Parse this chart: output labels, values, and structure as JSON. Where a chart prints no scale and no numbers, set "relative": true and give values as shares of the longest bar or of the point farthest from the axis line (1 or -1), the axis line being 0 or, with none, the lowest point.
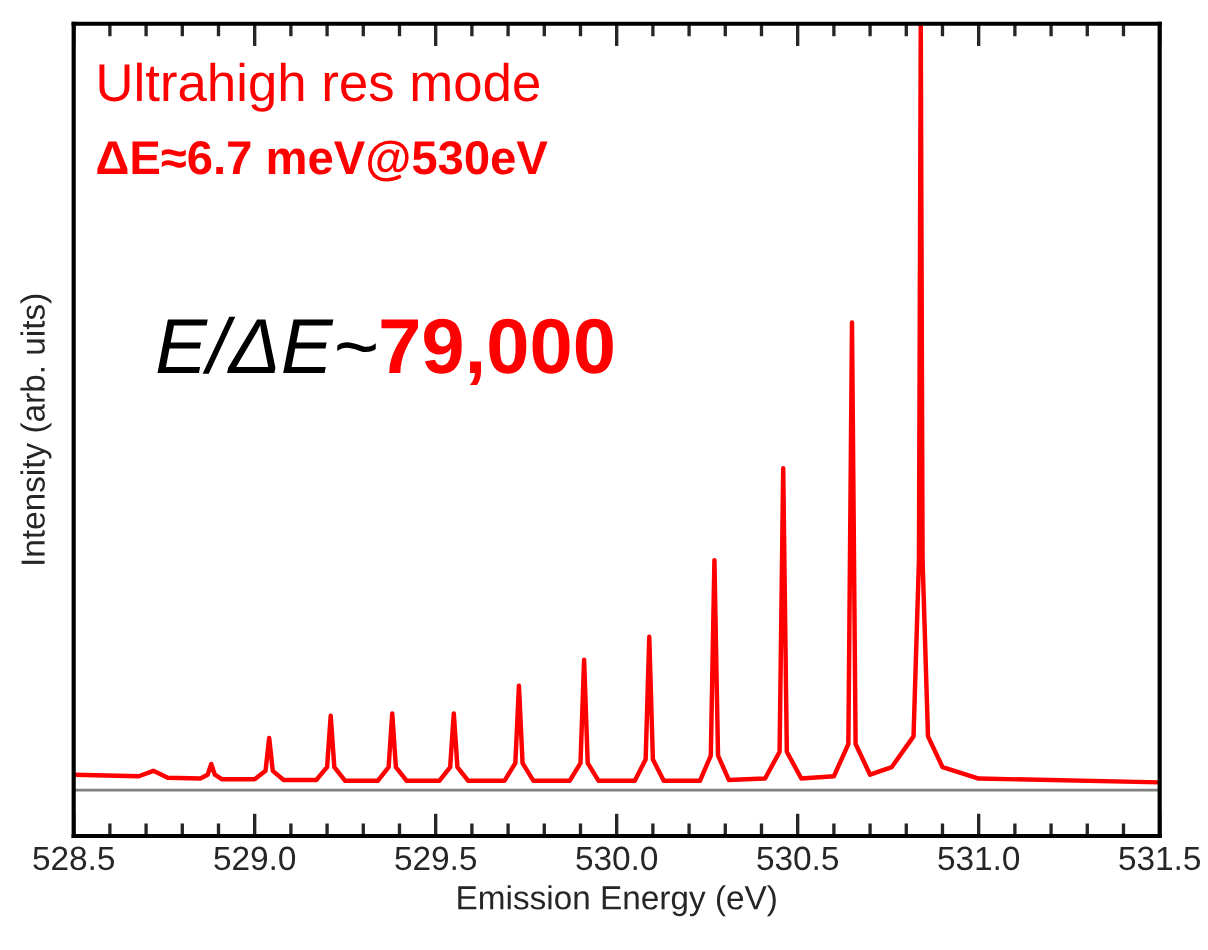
{
  "chart_data": {
    "type": "line",
    "relative": true,
    "xlabel": "Emission Energy (eV)",
    "ylabel": "Intensity (arb. uits)",
    "xlim": [
      528.5,
      531.5
    ],
    "xticks": [
      528.5,
      {
        "value": 528.6,
        "label": null
      },
      {
        "value": 528.7,
        "label": null
      },
      {
        "value": 528.8,
        "label": null
      },
      {
        "value": 528.9,
        "label": null
      },
      {
        "value": 529.0,
        "label": "529.0"
      },
      {
        "value": 529.1,
        "label": null
      },
      {
        "value": 529.2,
        "label": null
      },
      {
        "value": 529.3,
        "label": null
      },
      {
        "value": 529.4,
        "label": null
      },
      529.5,
      {
        "value": 529.6,
        "label": null
      },
      {
        "value": 529.7,
        "label": null
      },
      {
        "value": 529.8,
        "label": null
      },
      {
        "value": 529.9,
        "label": null
      },
      {
        "value": 530.0,
        "label": "530.0"
      },
      {
        "value": 530.1,
        "label": null
      },
      {
        "value": 530.2,
        "label": null
      },
      {
        "value": 530.3,
        "label": null
      },
      {
        "value": 530.4,
        "label": null
      },
      530.5,
      {
        "value": 530.6,
        "label": null
      },
      {
        "value": 530.7,
        "label": null
      },
      {
        "value": 530.8,
        "label": null
      },
      {
        "value": 530.9,
        "label": null
      },
      {
        "value": 531.0,
        "label": "531.0"
      },
      {
        "value": 531.1,
        "label": null
      },
      {
        "value": 531.2,
        "label": null
      },
      {
        "value": 531.3,
        "label": null
      },
      {
        "value": 531.4,
        "label": null
      },
      531.5
    ],
    "ref_lines": [
      {
        "axis": "y",
        "value": 0,
        "label": null,
        "color": "#808080"
      }
    ],
    "series": [
      {
        "color": "#ff0000",
        "x": [
          528.5,
          528.68,
          528.72,
          528.76,
          528.85,
          528.87,
          528.88,
          528.89,
          528.91,
          529.0,
          529.03,
          529.04,
          529.05,
          529.08,
          529.17,
          529.2,
          529.21,
          529.22,
          529.25,
          529.34,
          529.37,
          529.38,
          529.39,
          529.42,
          529.51,
          529.54,
          529.55,
          529.56,
          529.59,
          529.69,
          529.72,
          529.73,
          529.74,
          529.77,
          529.87,
          529.9,
          529.91,
          529.92,
          529.95,
          530.05,
          530.08,
          530.09,
          530.1,
          530.13,
          530.23,
          530.26,
          530.27,
          530.28,
          530.31,
          530.41,
          530.45,
          530.46,
          530.47,
          530.51,
          530.6,
          530.64,
          530.65,
          530.66,
          530.7,
          530.76,
          530.82,
          530.835,
          530.84,
          530.845,
          530.86,
          530.9,
          531.0,
          531.5
        ],
        "values": [
          0.02,
          0.018,
          0.025,
          0.016,
          0.015,
          0.02,
          0.034,
          0.02,
          0.014,
          0.014,
          0.025,
          0.068,
          0.025,
          0.013,
          0.013,
          0.03,
          0.097,
          0.03,
          0.012,
          0.012,
          0.03,
          0.1,
          0.03,
          0.012,
          0.012,
          0.03,
          0.1,
          0.03,
          0.012,
          0.012,
          0.035,
          0.136,
          0.035,
          0.012,
          0.012,
          0.035,
          0.17,
          0.035,
          0.012,
          0.012,
          0.04,
          0.2,
          0.04,
          0.012,
          0.012,
          0.045,
          0.3,
          0.045,
          0.013,
          0.015,
          0.05,
          0.42,
          0.05,
          0.015,
          0.018,
          0.06,
          0.61,
          0.06,
          0.02,
          0.03,
          0.07,
          0.3,
          1.0,
          0.3,
          0.07,
          0.03,
          0.015,
          0.01
        ]
      }
    ],
    "annotations": [
      "Ultrahigh res mode",
      "ΔE≈6.7 meV@530eV",
      "E/ΔE~",
      "79,000"
    ]
  }
}
